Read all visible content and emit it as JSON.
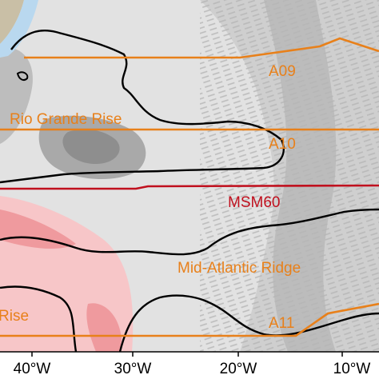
{
  "map": {
    "x_ticks": [
      "40°W",
      "30°W",
      "20°W",
      "10°W"
    ],
    "labels": {
      "a09": "A09",
      "rio_grande_rise": "Rio Grande Rise",
      "a10": "A10",
      "msm60": "MSM60",
      "mid_atlantic_ridge": "Mid-Atlantic Ridge",
      "rise_partial": "Rise",
      "a11": "A11"
    },
    "colors": {
      "ocean_light": "#e2e2e2",
      "ocean_mid": "#c4c4c4",
      "ocean_dark": "#9a9a9a",
      "land": "#c9bfa6",
      "pink_anomaly": "#f7c6c8",
      "pink_strong": "#ef9a9e",
      "orange_section": "#e8801a",
      "red_section": "#c0101e",
      "contour": "#000000",
      "light_blue": "#b9d8ef"
    }
  }
}
